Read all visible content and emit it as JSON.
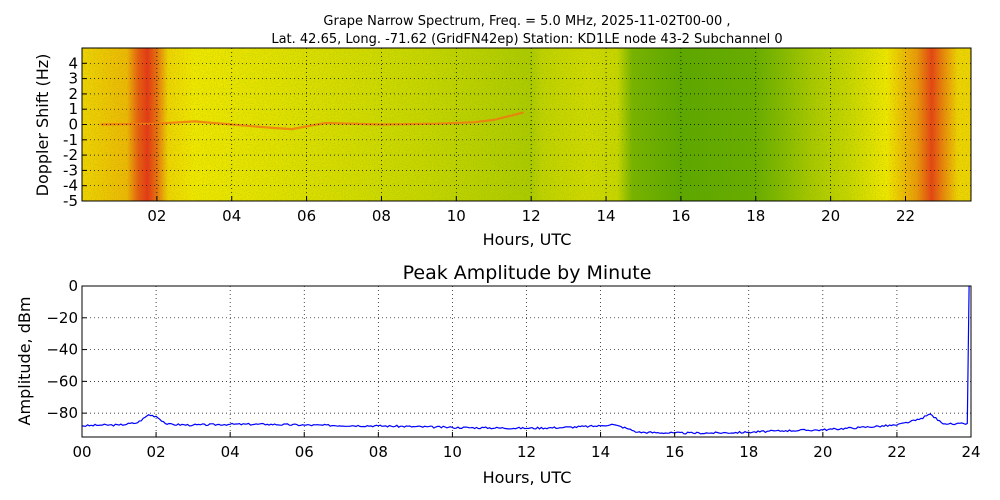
{
  "figure": {
    "title_line1": "Grape Narrow Spectrum, Freq. = 5.0 MHz, 2025-11-02T00-00 ,",
    "title_line2": "Lat.  42.65, Long. -71.62 (GridFN42ep) Station: KD1LE node 43-2 Subchannel 0"
  },
  "chart_data": [
    {
      "type": "heatmap",
      "title": "",
      "xlabel": "Hours, UTC",
      "ylabel": "Doppler Shift (Hz)",
      "xlim": [
        0,
        23.75
      ],
      "ylim": [
        -5,
        5
      ],
      "x_ticks": [
        "02",
        "04",
        "06",
        "08",
        "10",
        "12",
        "14",
        "16",
        "18",
        "20",
        "22"
      ],
      "y_ticks": [
        "4",
        "3",
        "2",
        "1",
        "0",
        "-1",
        "-2",
        "-3",
        "-4",
        "-5"
      ],
      "grid": true,
      "colors": {
        "background": "#f2e600",
        "strong": "#e8201a",
        "weak": "#2a9000"
      },
      "intensity_by_hour": [
        {
          "x": 0.0,
          "v": 0.55
        },
        {
          "x": 1.2,
          "v": 0.62
        },
        {
          "x": 1.5,
          "v": 0.85
        },
        {
          "x": 1.75,
          "v": 0.95
        },
        {
          "x": 2.0,
          "v": 0.8
        },
        {
          "x": 2.3,
          "v": 0.55
        },
        {
          "x": 3.0,
          "v": 0.5
        },
        {
          "x": 6.0,
          "v": 0.45
        },
        {
          "x": 9.0,
          "v": 0.4
        },
        {
          "x": 12.0,
          "v": 0.33
        },
        {
          "x": 12.3,
          "v": 0.38
        },
        {
          "x": 13.5,
          "v": 0.42
        },
        {
          "x": 14.3,
          "v": 0.4
        },
        {
          "x": 14.7,
          "v": 0.2
        },
        {
          "x": 16.0,
          "v": 0.13
        },
        {
          "x": 18.0,
          "v": 0.16
        },
        {
          "x": 18.6,
          "v": 0.22
        },
        {
          "x": 19.5,
          "v": 0.32
        },
        {
          "x": 20.5,
          "v": 0.4
        },
        {
          "x": 21.5,
          "v": 0.5
        },
        {
          "x": 22.3,
          "v": 0.7
        },
        {
          "x": 22.7,
          "v": 0.92
        },
        {
          "x": 23.0,
          "v": 0.75
        },
        {
          "x": 23.4,
          "v": 0.55
        },
        {
          "x": 23.75,
          "v": 0.55
        }
      ],
      "doppler_trace": [
        {
          "x": 0.5,
          "y": 0.0
        },
        {
          "x": 2.0,
          "y": 0.05
        },
        {
          "x": 3.0,
          "y": 0.2
        },
        {
          "x": 4.0,
          "y": 0.0
        },
        {
          "x": 5.0,
          "y": -0.2
        },
        {
          "x": 5.6,
          "y": -0.3
        },
        {
          "x": 6.5,
          "y": 0.1
        },
        {
          "x": 8.0,
          "y": 0.0
        },
        {
          "x": 9.5,
          "y": 0.05
        },
        {
          "x": 10.5,
          "y": 0.15
        },
        {
          "x": 11.0,
          "y": 0.3
        },
        {
          "x": 11.5,
          "y": 0.6
        },
        {
          "x": 11.8,
          "y": 0.8
        }
      ]
    },
    {
      "type": "line",
      "title": "Peak Amplitude by Minute",
      "xlabel": "Hours, UTC",
      "ylabel": "Amplitude, dBm",
      "xlim": [
        0,
        24
      ],
      "ylim": [
        -95,
        0
      ],
      "x_ticks": [
        "00",
        "02",
        "04",
        "06",
        "08",
        "10",
        "12",
        "14",
        "16",
        "18",
        "20",
        "22",
        "24"
      ],
      "y_ticks": [
        "0",
        "−20",
        "−40",
        "−60",
        "−80"
      ],
      "grid": true,
      "series": [
        {
          "color": "#0000ff",
          "points": [
            {
              "x": 0.0,
              "y": -88.0
            },
            {
              "x": 0.5,
              "y": -87.5
            },
            {
              "x": 1.0,
              "y": -87.5
            },
            {
              "x": 1.5,
              "y": -86.0
            },
            {
              "x": 1.8,
              "y": -81.0
            },
            {
              "x": 2.0,
              "y": -82.0
            },
            {
              "x": 2.3,
              "y": -87.0
            },
            {
              "x": 3.0,
              "y": -87.5
            },
            {
              "x": 4.0,
              "y": -87.0
            },
            {
              "x": 5.0,
              "y": -87.0
            },
            {
              "x": 6.0,
              "y": -87.5
            },
            {
              "x": 8.0,
              "y": -88.0
            },
            {
              "x": 10.0,
              "y": -89.0
            },
            {
              "x": 12.0,
              "y": -89.5
            },
            {
              "x": 13.0,
              "y": -89.0
            },
            {
              "x": 14.0,
              "y": -88.0
            },
            {
              "x": 14.3,
              "y": -87.0
            },
            {
              "x": 14.7,
              "y": -89.5
            },
            {
              "x": 15.0,
              "y": -92.0
            },
            {
              "x": 16.0,
              "y": -92.5
            },
            {
              "x": 17.0,
              "y": -92.5
            },
            {
              "x": 18.0,
              "y": -92.0
            },
            {
              "x": 19.0,
              "y": -91.0
            },
            {
              "x": 20.0,
              "y": -90.5
            },
            {
              "x": 21.0,
              "y": -89.0
            },
            {
              "x": 22.0,
              "y": -87.5
            },
            {
              "x": 22.6,
              "y": -84.0
            },
            {
              "x": 22.9,
              "y": -80.5
            },
            {
              "x": 23.2,
              "y": -86.0
            },
            {
              "x": 23.5,
              "y": -87.0
            },
            {
              "x": 23.9,
              "y": -86.5
            },
            {
              "x": 23.95,
              "y": 0.0
            }
          ]
        }
      ]
    }
  ]
}
